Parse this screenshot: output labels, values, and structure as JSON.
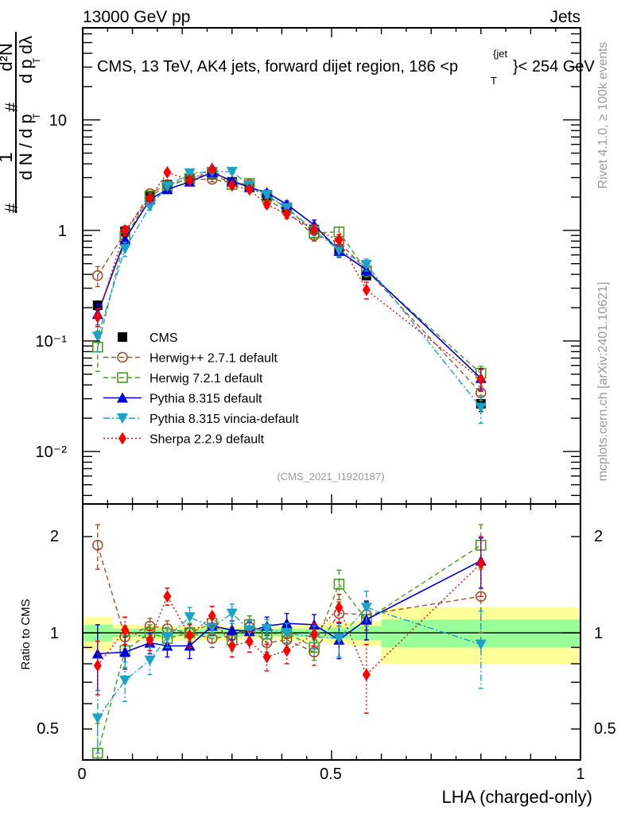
{
  "header": {
    "left": "13000 GeV pp",
    "right": "Jets"
  },
  "side_labels": {
    "rivet": "Rivet 4.1.0, ≥ 100k events",
    "mcplots": "mcplots.cern.ch [arXiv:2401.10621]"
  },
  "chart_data": [
    {
      "type": "line",
      "panel": "main",
      "title": "CMS, 13 TeV, AK4 jets, forward dijet region, 186 <p_T^{jet}< 254 GeV",
      "title_parts": {
        "main": "CMS, 13 TeV, AK4 jets, forward dijet region, 186 <p",
        "sup": "{jet",
        "sub": "T",
        "tail": "}< 254 GeV"
      },
      "ylabel": "1/N dN/dp_T  d²N/dp_T dλ",
      "ylabel_parts": {
        "frac1_num": "1",
        "frac1_den": "d N / d p",
        "frac2_num": "d²N",
        "frac2_den": "d p  dλ",
        "hash": "#",
        "sub": "T"
      },
      "yscale": "log",
      "ylim": [
        0.00335,
        68
      ],
      "xlim": [
        0,
        1
      ],
      "ytick_labels": [
        "10",
        "1",
        "10⁻¹",
        "10⁻²"
      ],
      "ytick_values": [
        10,
        1,
        0.1,
        0.01
      ],
      "analysis_tag": "(CMS_2021_I1920187)",
      "x": [
        0.03,
        0.085,
        0.135,
        0.17,
        0.215,
        0.26,
        0.3,
        0.335,
        0.37,
        0.41,
        0.465,
        0.515,
        0.57,
        0.8
      ],
      "legend_position": "bottom-left",
      "series": [
        {
          "name": "CMS",
          "color": "#000000",
          "marker": "square-filled",
          "line": "none",
          "values": [
            0.21,
            0.98,
            2.05,
            2.6,
            2.9,
            3.2,
            2.75,
            2.5,
            2.05,
            1.6,
            1.02,
            0.68,
            0.39,
            0.027
          ],
          "err": [
            0.02,
            0.05,
            0.08,
            0.08,
            0.08,
            0.08,
            0.08,
            0.08,
            0.07,
            0.06,
            0.05,
            0.04,
            0.03,
            0.004
          ]
        },
        {
          "name": "Herwig++ 2.7.1 default",
          "color": "#a0522d",
          "marker": "circle-open",
          "line": "dashed",
          "values": [
            0.39,
            0.95,
            2.15,
            2.6,
            2.9,
            2.9,
            2.7,
            2.6,
            1.9,
            1.5,
            0.9,
            0.78,
            0.44,
            0.034
          ],
          "err": [
            0.08,
            0.08,
            0.12,
            0.12,
            0.15,
            0.15,
            0.15,
            0.12,
            0.12,
            0.12,
            0.1,
            0.08,
            0.05,
            0.005
          ]
        },
        {
          "name": "Herwig 7.2.1 default",
          "color": "#4a9a1f",
          "marker": "square-open",
          "line": "dashed",
          "values": [
            0.088,
            0.86,
            2.05,
            2.5,
            2.95,
            3.3,
            2.6,
            2.65,
            2.05,
            1.6,
            0.95,
            0.97,
            0.43,
            0.051
          ],
          "err": [
            0.035,
            0.1,
            0.12,
            0.12,
            0.15,
            0.15,
            0.15,
            0.12,
            0.12,
            0.12,
            0.1,
            0.1,
            0.05,
            0.008
          ]
        },
        {
          "name": "Pythia 8.315 default",
          "color": "#0000dd",
          "marker": "triangle-up",
          "line": "solid",
          "values": [
            0.175,
            0.83,
            1.9,
            2.35,
            2.75,
            3.35,
            2.8,
            2.45,
            2.2,
            1.72,
            1.12,
            0.65,
            0.44,
            0.046
          ],
          "err": [
            0.04,
            0.08,
            0.1,
            0.12,
            0.14,
            0.15,
            0.14,
            0.12,
            0.12,
            0.12,
            0.12,
            0.08,
            0.05,
            0.01
          ]
        },
        {
          "name": "Pythia 8.315 vincia-default",
          "color": "#1aa3c9",
          "marker": "triangle-down",
          "line": "dashdot",
          "values": [
            0.11,
            0.68,
            1.65,
            2.5,
            3.3,
            3.4,
            3.4,
            2.55,
            2.1,
            1.6,
            1.0,
            0.66,
            0.49,
            0.025
          ],
          "err": [
            0.03,
            0.1,
            0.12,
            0.15,
            0.15,
            0.15,
            0.15,
            0.12,
            0.12,
            0.12,
            0.1,
            0.08,
            0.06,
            0.007
          ]
        },
        {
          "name": "Sherpa 2.2.9 default",
          "color": "#ff0000",
          "marker": "diamond",
          "line": "dotted",
          "values": [
            0.165,
            1.0,
            1.95,
            3.35,
            2.85,
            3.6,
            2.55,
            2.35,
            1.72,
            1.4,
            1.02,
            0.82,
            0.29,
            0.045
          ],
          "err": [
            0.03,
            0.1,
            0.12,
            0.15,
            0.15,
            0.15,
            0.14,
            0.12,
            0.12,
            0.12,
            0.1,
            0.1,
            0.05,
            0.01
          ]
        }
      ]
    },
    {
      "type": "line",
      "panel": "ratio",
      "ylabel": "Ratio to CMS",
      "xlabel": "LHA (charged-only)",
      "yscale": "log",
      "ylim": [
        0.4,
        2.53
      ],
      "xlim": [
        0,
        1
      ],
      "xtick_labels": [
        "0",
        "0.5",
        "1"
      ],
      "xtick_values": [
        0,
        0.5,
        1
      ],
      "ytick_labels": [
        "2",
        "1",
        "0.5"
      ],
      "ytick_values": [
        2,
        1,
        0.5
      ],
      "reference_line": 1,
      "uncertainty_bands": {
        "bin_edges": [
          0,
          0.06,
          0.11,
          0.16,
          0.19,
          0.24,
          0.28,
          0.32,
          0.35,
          0.39,
          0.43,
          0.49,
          0.54,
          0.6,
          1.0
        ],
        "inner_color": "#99ff99",
        "outer_color": "#ffff99",
        "inner_half_width": [
          0.06,
          0.03,
          0.03,
          0.025,
          0.025,
          0.03,
          0.03,
          0.025,
          0.025,
          0.025,
          0.03,
          0.04,
          0.05,
          0.1
        ],
        "outer_half_width": [
          0.12,
          0.06,
          0.055,
          0.05,
          0.05,
          0.05,
          0.05,
          0.045,
          0.045,
          0.05,
          0.06,
          0.08,
          0.09,
          0.2
        ]
      },
      "x": [
        0.03,
        0.085,
        0.135,
        0.17,
        0.215,
        0.26,
        0.3,
        0.335,
        0.37,
        0.41,
        0.465,
        0.515,
        0.57,
        0.8
      ],
      "series": [
        {
          "name": "Herwig++ 2.7.1 default",
          "color": "#a0522d",
          "marker": "circle-open",
          "line": "dashed",
          "values": [
            1.88,
            0.97,
            1.05,
            1.03,
            1.0,
            0.96,
            0.98,
            1.04,
            0.93,
            0.95,
            0.87,
            1.15,
            1.14,
            1.3
          ],
          "err": [
            0.3,
            0.08,
            0.06,
            0.06,
            0.06,
            0.06,
            0.06,
            0.06,
            0.06,
            0.07,
            0.08,
            0.1,
            0.12,
            0.3
          ]
        },
        {
          "name": "Herwig 7.2.1 default",
          "color": "#4a9a1f",
          "marker": "square-open",
          "line": "dashed",
          "values": [
            0.42,
            0.88,
            1.0,
            0.96,
            1.0,
            1.07,
            0.95,
            1.06,
            0.99,
            1.0,
            0.9,
            1.42,
            1.1,
            1.88
          ],
          "err": [
            0.1,
            0.1,
            0.06,
            0.07,
            0.07,
            0.07,
            0.07,
            0.07,
            0.07,
            0.07,
            0.08,
            0.15,
            0.15,
            0.3
          ]
        },
        {
          "name": "Pythia 8.315 default",
          "color": "#0000dd",
          "marker": "triangle-up",
          "line": "solid",
          "values": [
            0.86,
            0.87,
            0.93,
            0.91,
            0.91,
            1.05,
            1.02,
            1.01,
            1.05,
            1.07,
            1.06,
            0.95,
            1.1,
            1.68
          ],
          "err": [
            0.2,
            0.1,
            0.07,
            0.07,
            0.08,
            0.07,
            0.07,
            0.07,
            0.07,
            0.08,
            0.08,
            0.12,
            0.15,
            0.3
          ]
        },
        {
          "name": "Pythia 8.315 vincia-default",
          "color": "#1aa3c9",
          "marker": "triangle-down",
          "line": "dashdot",
          "values": [
            0.54,
            0.71,
            0.82,
            0.97,
            1.12,
            1.04,
            1.15,
            1.02,
            1.03,
            1.0,
            0.97,
            0.96,
            1.2,
            0.92
          ],
          "err": [
            0.12,
            0.1,
            0.08,
            0.07,
            0.08,
            0.08,
            0.08,
            0.07,
            0.07,
            0.07,
            0.08,
            0.12,
            0.15,
            0.25
          ]
        },
        {
          "name": "Sherpa 2.2.9 default",
          "color": "#ff0000",
          "marker": "diamond",
          "line": "dotted",
          "values": [
            0.79,
            1.02,
            0.95,
            1.3,
            0.98,
            1.13,
            0.91,
            0.94,
            0.84,
            0.88,
            0.99,
            1.2,
            0.74,
            1.65
          ],
          "err": [
            0.15,
            0.1,
            0.07,
            0.08,
            0.08,
            0.08,
            0.07,
            0.07,
            0.08,
            0.08,
            0.08,
            0.12,
            0.18,
            0.35
          ]
        }
      ]
    }
  ]
}
